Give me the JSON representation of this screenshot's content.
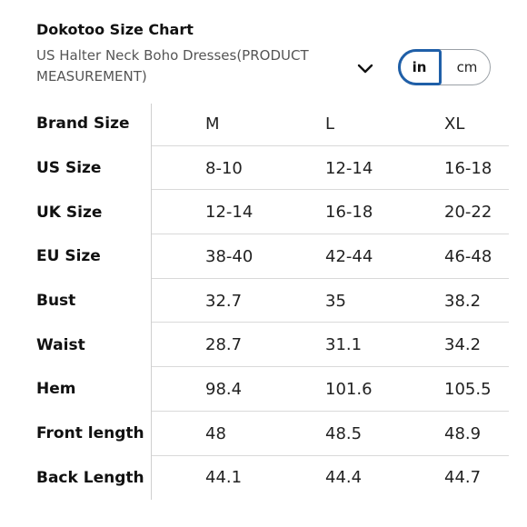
{
  "header": {
    "title": "Dokotoo Size Chart",
    "subtitle": "US Halter Neck Boho Dresses(PRODUCT MEASUREMENT)",
    "dropdown_icon": "chevron-down-icon"
  },
  "unit_toggle": {
    "selected": "in",
    "in_label": "in",
    "cm_label": "cm",
    "accent_color": "#1f5fa8"
  },
  "table": {
    "header": [
      "Brand Size",
      "M",
      "L",
      "XL"
    ],
    "rows": [
      [
        "US Size",
        "8-10",
        "12-14",
        "16-18"
      ],
      [
        "UK Size",
        "12-14",
        "16-18",
        "20-22"
      ],
      [
        "EU Size",
        "38-40",
        "42-44",
        "46-48"
      ],
      [
        "Bust",
        "32.7",
        "35",
        "38.2"
      ],
      [
        "Waist",
        "28.7",
        "31.1",
        "34.2"
      ],
      [
        "Hem",
        "98.4",
        "101.6",
        "105.5"
      ],
      [
        "Front length",
        "48",
        "48.5",
        "48.9"
      ],
      [
        "Back Length",
        "44.1",
        "44.4",
        "44.7"
      ]
    ]
  }
}
